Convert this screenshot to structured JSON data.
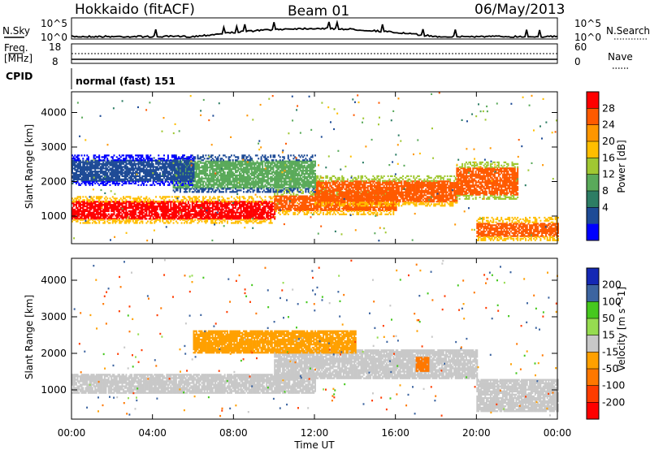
{
  "header": {
    "radar": "Hokkaido (fitACF)",
    "beam": "Beam 01",
    "date": "06/May/2013"
  },
  "top_panel": {
    "left_label": "N.Sky",
    "right_label": "N.Search",
    "left_ticks": [
      "10^5",
      "10^0"
    ],
    "right_ticks": [
      "10^5",
      "10^0"
    ]
  },
  "freq_panel": {
    "left_label": "Freq.",
    "left_unit": "[MHz]",
    "right_label": "Nave",
    "left_ticks": [
      "18",
      "8"
    ],
    "right_ticks": [
      "60",
      "0"
    ]
  },
  "cpid_panel": {
    "label": "CPID",
    "text": "normal (fast) 151"
  },
  "power_panel": {
    "ylabel": "Slant Range [km]",
    "yticks": [
      "4000",
      "3000",
      "2000",
      "1000"
    ],
    "colorbar_label": "Power [dB]",
    "colorbar_ticks": [
      "28",
      "24",
      "20",
      "16",
      "12",
      "8",
      "4"
    ],
    "colors": [
      "#ff0000",
      "#ff5a00",
      "#ff9600",
      "#ffbe00",
      "#a0c832",
      "#5aaa5a",
      "#2d7d64",
      "#1e4b96",
      "#0000ff"
    ]
  },
  "velocity_panel": {
    "ylabel": "Slant Range [km]",
    "yticks": [
      "4000",
      "3000",
      "2000",
      "1000"
    ],
    "colorbar_label": "Velocity [m s^-1]",
    "colorbar_ticks": [
      "200",
      "100",
      "50",
      "15",
      "-15",
      "-50",
      "-100",
      "-200"
    ],
    "colors": [
      "#1428b4",
      "#3c64a0",
      "#46c81e",
      "#96dc50",
      "#c8c8c8",
      "#ffa000",
      "#ff7800",
      "#ff3c00",
      "#ff0000"
    ]
  },
  "x_axis": {
    "label": "Time UT",
    "ticks": [
      "00:00",
      "04:00",
      "08:00",
      "12:00",
      "16:00",
      "20:00",
      "00:00"
    ]
  },
  "chart_data": [
    {
      "type": "heatmap",
      "name": "Power",
      "x_range_hours": [
        0,
        24
      ],
      "y_range_km": [
        200,
        4600
      ],
      "color_range_db": [
        0,
        32
      ],
      "approx_echo_bands": [
        {
          "t_start": 0,
          "t_end": 10,
          "range_km": [
            900,
            1400
          ],
          "power_db": 29
        },
        {
          "t_start": 10,
          "t_end": 16,
          "range_km": [
            1150,
            1600
          ],
          "power_db": 26
        },
        {
          "t_start": 12,
          "t_end": 19,
          "range_km": [
            1400,
            2000
          ],
          "power_db": 27
        },
        {
          "t_start": 19,
          "t_end": 22,
          "range_km": [
            1600,
            2400
          ],
          "power_db": 25
        },
        {
          "t_start": 20,
          "t_end": 24,
          "range_km": [
            400,
            800
          ],
          "power_db": 28
        },
        {
          "t_start": 5,
          "t_end": 12,
          "range_km": [
            1800,
            2600
          ],
          "power_db": 14
        },
        {
          "t_start": 0,
          "t_end": 6,
          "range_km": [
            2000,
            2600
          ],
          "power_db": 6
        }
      ]
    },
    {
      "type": "heatmap",
      "name": "Velocity",
      "x_range_hours": [
        0,
        24
      ],
      "y_range_km": [
        200,
        4600
      ],
      "color_range_ms": [
        -200,
        200
      ],
      "approx_echo_bands": [
        {
          "t_start": 0,
          "t_end": 12,
          "range_km": [
            900,
            1400
          ],
          "velocity": 0
        },
        {
          "t_start": 10,
          "t_end": 20,
          "range_km": [
            1300,
            2100
          ],
          "velocity": 0
        },
        {
          "t_start": 17,
          "t_end": 17.6,
          "range_km": [
            1500,
            1900
          ],
          "velocity": -80
        },
        {
          "t_start": 6,
          "t_end": 14,
          "range_km": [
            2000,
            2600
          ],
          "velocity": -40
        },
        {
          "t_start": 20,
          "t_end": 24,
          "range_km": [
            400,
            1300
          ],
          "velocity": 0
        }
      ]
    }
  ]
}
